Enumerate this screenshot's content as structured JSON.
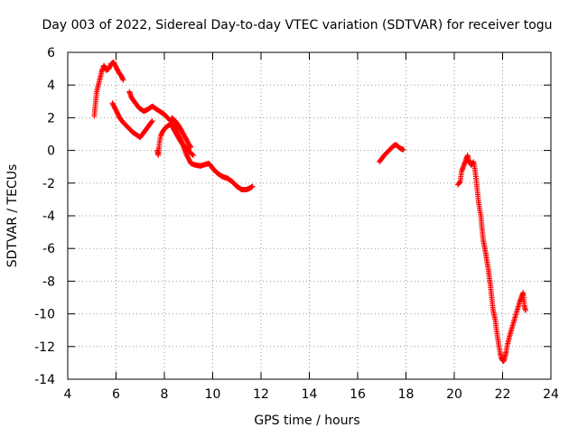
{
  "chart_data": {
    "type": "scatter",
    "title": "Day 003 of 2022, Sidereal Day-to-day VTEC variation (SDTVAR) for receiver togu",
    "xlabel": "GPS time / hours",
    "ylabel": "SDTVAR / TECUs",
    "xlim": [
      4,
      24
    ],
    "ylim": [
      -14,
      6
    ],
    "xticks": [
      4,
      6,
      8,
      10,
      12,
      14,
      16,
      18,
      20,
      22,
      24
    ],
    "yticks": [
      -14,
      -12,
      -10,
      -8,
      -6,
      -4,
      -2,
      0,
      2,
      4,
      6
    ],
    "grid": true,
    "marker": "+",
    "color": "#ff0000",
    "series": [
      {
        "name": "togu",
        "segments": [
          [
            [
              5.1,
              2.1
            ],
            [
              5.15,
              2.9
            ],
            [
              5.2,
              3.6
            ],
            [
              5.3,
              4.2
            ],
            [
              5.4,
              4.8
            ],
            [
              5.5,
              5.2
            ],
            [
              5.6,
              4.9
            ],
            [
              5.7,
              5.0
            ],
            [
              5.8,
              5.3
            ],
            [
              5.9,
              5.4
            ],
            [
              6.0,
              5.1
            ],
            [
              6.1,
              4.8
            ],
            [
              6.2,
              4.6
            ],
            [
              6.3,
              4.3
            ]
          ],
          [
            [
              5.85,
              2.9
            ],
            [
              5.95,
              2.6
            ],
            [
              6.05,
              2.3
            ],
            [
              6.15,
              2.0
            ],
            [
              6.3,
              1.7
            ],
            [
              6.5,
              1.4
            ],
            [
              6.7,
              1.1
            ],
            [
              6.9,
              0.9
            ],
            [
              7.0,
              0.8
            ],
            [
              7.1,
              1.0
            ],
            [
              7.3,
              1.4
            ],
            [
              7.5,
              1.8
            ]
          ],
          [
            [
              6.55,
              3.6
            ],
            [
              6.65,
              3.2
            ],
            [
              6.75,
              3.0
            ],
            [
              6.85,
              2.8
            ],
            [
              6.95,
              2.6
            ],
            [
              7.05,
              2.5
            ],
            [
              7.15,
              2.4
            ],
            [
              7.3,
              2.5
            ],
            [
              7.5,
              2.7
            ],
            [
              7.6,
              2.6
            ],
            [
              7.8,
              2.4
            ],
            [
              8.0,
              2.2
            ],
            [
              8.2,
              1.9
            ],
            [
              8.4,
              1.6
            ],
            [
              8.55,
              1.2
            ],
            [
              8.6,
              0.9
            ],
            [
              8.7,
              0.6
            ],
            [
              8.8,
              0.2
            ],
            [
              8.9,
              -0.2
            ],
            [
              9.0,
              -0.5
            ],
            [
              9.1,
              -0.8
            ],
            [
              9.3,
              -0.9
            ],
            [
              9.5,
              -0.95
            ],
            [
              9.7,
              -0.85
            ],
            [
              9.85,
              -0.8
            ],
            [
              10.0,
              -1.1
            ],
            [
              10.2,
              -1.4
            ],
            [
              10.4,
              -1.6
            ],
            [
              10.6,
              -1.7
            ],
            [
              10.8,
              -1.9
            ],
            [
              11.0,
              -2.2
            ],
            [
              11.2,
              -2.4
            ],
            [
              11.4,
              -2.4
            ],
            [
              11.55,
              -2.3
            ],
            [
              11.65,
              -2.2
            ]
          ],
          [
            [
              7.7,
              0.0
            ],
            [
              7.75,
              -0.3
            ],
            [
              7.8,
              0.5
            ],
            [
              7.85,
              0.9
            ],
            [
              7.95,
              1.2
            ],
            [
              8.05,
              1.4
            ],
            [
              8.15,
              1.5
            ],
            [
              8.25,
              1.6
            ],
            [
              8.35,
              1.4
            ],
            [
              8.5,
              1.0
            ],
            [
              8.65,
              0.6
            ],
            [
              8.8,
              0.3
            ],
            [
              8.95,
              0.1
            ],
            [
              9.05,
              -0.1
            ],
            [
              9.2,
              -0.3
            ]
          ],
          [
            [
              8.3,
              2.0
            ],
            [
              8.45,
              1.8
            ],
            [
              8.6,
              1.5
            ],
            [
              8.75,
              1.1
            ],
            [
              8.9,
              0.7
            ],
            [
              9.0,
              0.4
            ],
            [
              9.1,
              0.2
            ]
          ],
          [
            [
              16.9,
              -0.7
            ],
            [
              17.0,
              -0.5
            ],
            [
              17.1,
              -0.3
            ],
            [
              17.2,
              -0.15
            ],
            [
              17.3,
              0.0
            ],
            [
              17.4,
              0.15
            ],
            [
              17.5,
              0.3
            ],
            [
              17.6,
              0.35
            ],
            [
              17.7,
              0.2
            ],
            [
              17.8,
              0.1
            ],
            [
              17.9,
              0.05
            ]
          ],
          [
            [
              20.15,
              -2.1
            ],
            [
              20.25,
              -1.9
            ],
            [
              20.3,
              -1.3
            ],
            [
              20.4,
              -0.9
            ],
            [
              20.5,
              -0.5
            ],
            [
              20.55,
              -0.3
            ],
            [
              20.6,
              -0.6
            ],
            [
              20.7,
              -0.9
            ],
            [
              20.8,
              -0.7
            ],
            [
              20.85,
              -1.1
            ],
            [
              20.9,
              -1.7
            ],
            [
              20.95,
              -2.4
            ],
            [
              21.0,
              -3.1
            ],
            [
              21.05,
              -3.6
            ],
            [
              21.1,
              -4.0
            ],
            [
              21.15,
              -4.8
            ],
            [
              21.2,
              -5.5
            ],
            [
              21.3,
              -6.3
            ],
            [
              21.4,
              -7.2
            ],
            [
              21.5,
              -8.3
            ],
            [
              21.55,
              -9.0
            ],
            [
              21.6,
              -9.7
            ],
            [
              21.7,
              -10.4
            ],
            [
              21.75,
              -11.0
            ],
            [
              21.8,
              -11.5
            ],
            [
              21.85,
              -12.0
            ],
            [
              21.9,
              -12.4
            ],
            [
              21.95,
              -12.7
            ],
            [
              22.0,
              -12.85
            ],
            [
              22.05,
              -12.9
            ],
            [
              22.1,
              -12.6
            ],
            [
              22.15,
              -12.3
            ],
            [
              22.2,
              -11.9
            ],
            [
              22.3,
              -11.3
            ],
            [
              22.4,
              -10.8
            ],
            [
              22.5,
              -10.3
            ],
            [
              22.6,
              -9.8
            ],
            [
              22.7,
              -9.3
            ],
            [
              22.8,
              -8.9
            ],
            [
              22.85,
              -8.7
            ],
            [
              22.9,
              -9.5
            ],
            [
              22.95,
              -9.8
            ]
          ]
        ]
      }
    ]
  }
}
